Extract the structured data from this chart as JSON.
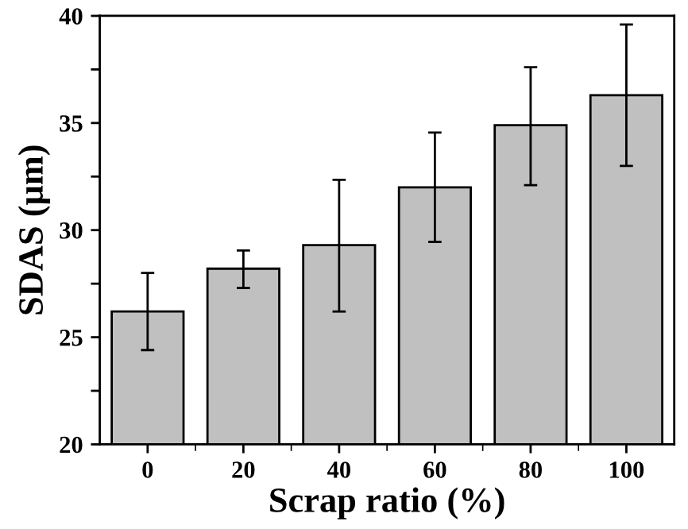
{
  "chart_data": {
    "type": "bar",
    "xlabel": "Scrap ratio (%)",
    "ylabel": "SDAS (μm)",
    "categories": [
      "0",
      "20",
      "40",
      "60",
      "80",
      "100"
    ],
    "values": [
      26.2,
      28.2,
      29.3,
      32.0,
      34.9,
      36.3
    ],
    "errors": [
      [
        24.4,
        28.0
      ],
      [
        27.3,
        29.05
      ],
      [
        26.2,
        32.35
      ],
      [
        29.45,
        34.55
      ],
      [
        32.1,
        37.6
      ],
      [
        33.0,
        39.6
      ]
    ],
    "color": "#c0c0c0",
    "ylim": [
      20,
      40
    ],
    "yticks": [
      20,
      {
        "value": 22.5,
        "label": null
      },
      25,
      {
        "value": 27.5,
        "label": null
      },
      30,
      {
        "value": 32.5,
        "label": null
      },
      35,
      {
        "value": 37.5,
        "label": null
      },
      40
    ],
    "grid": false,
    "legend": false
  }
}
